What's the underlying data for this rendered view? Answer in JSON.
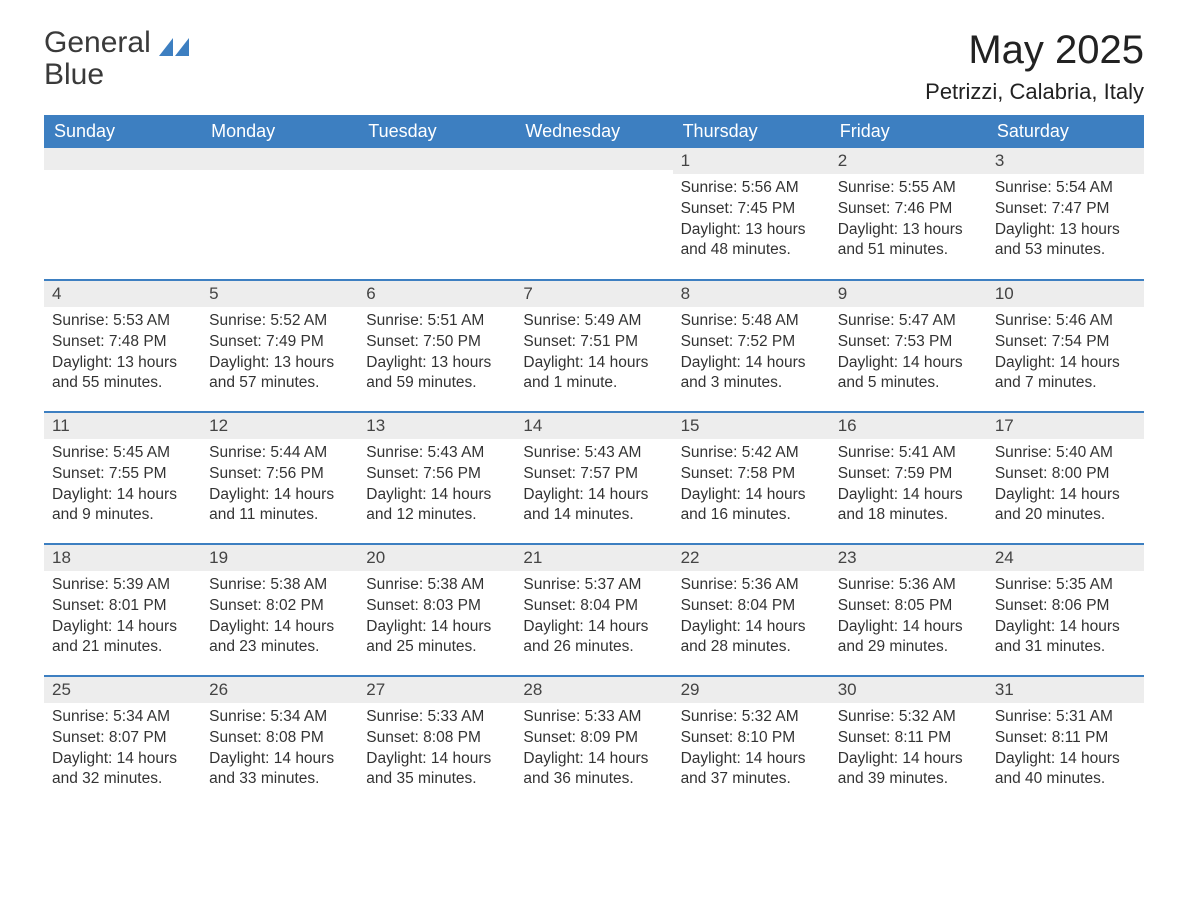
{
  "logo": {
    "text1": "General",
    "text2": "Blue",
    "shape_color": "#3d7fc1"
  },
  "title": "May 2025",
  "subtitle": "Petrizzi, Calabria, Italy",
  "colors": {
    "header_bg": "#3d7fc1",
    "header_fg": "#ffffff",
    "daynum_bg": "#ededed",
    "row_border": "#3d7fc1",
    "text": "#333333",
    "background": "#ffffff"
  },
  "weekdays": [
    "Sunday",
    "Monday",
    "Tuesday",
    "Wednesday",
    "Thursday",
    "Friday",
    "Saturday"
  ],
  "weeks": [
    [
      null,
      null,
      null,
      null,
      {
        "n": "1",
        "sunrise": "5:56 AM",
        "sunset": "7:45 PM",
        "daylight": "13 hours and 48 minutes."
      },
      {
        "n": "2",
        "sunrise": "5:55 AM",
        "sunset": "7:46 PM",
        "daylight": "13 hours and 51 minutes."
      },
      {
        "n": "3",
        "sunrise": "5:54 AM",
        "sunset": "7:47 PM",
        "daylight": "13 hours and 53 minutes."
      }
    ],
    [
      {
        "n": "4",
        "sunrise": "5:53 AM",
        "sunset": "7:48 PM",
        "daylight": "13 hours and 55 minutes."
      },
      {
        "n": "5",
        "sunrise": "5:52 AM",
        "sunset": "7:49 PM",
        "daylight": "13 hours and 57 minutes."
      },
      {
        "n": "6",
        "sunrise": "5:51 AM",
        "sunset": "7:50 PM",
        "daylight": "13 hours and 59 minutes."
      },
      {
        "n": "7",
        "sunrise": "5:49 AM",
        "sunset": "7:51 PM",
        "daylight": "14 hours and 1 minute."
      },
      {
        "n": "8",
        "sunrise": "5:48 AM",
        "sunset": "7:52 PM",
        "daylight": "14 hours and 3 minutes."
      },
      {
        "n": "9",
        "sunrise": "5:47 AM",
        "sunset": "7:53 PM",
        "daylight": "14 hours and 5 minutes."
      },
      {
        "n": "10",
        "sunrise": "5:46 AM",
        "sunset": "7:54 PM",
        "daylight": "14 hours and 7 minutes."
      }
    ],
    [
      {
        "n": "11",
        "sunrise": "5:45 AM",
        "sunset": "7:55 PM",
        "daylight": "14 hours and 9 minutes."
      },
      {
        "n": "12",
        "sunrise": "5:44 AM",
        "sunset": "7:56 PM",
        "daylight": "14 hours and 11 minutes."
      },
      {
        "n": "13",
        "sunrise": "5:43 AM",
        "sunset": "7:56 PM",
        "daylight": "14 hours and 12 minutes."
      },
      {
        "n": "14",
        "sunrise": "5:43 AM",
        "sunset": "7:57 PM",
        "daylight": "14 hours and 14 minutes."
      },
      {
        "n": "15",
        "sunrise": "5:42 AM",
        "sunset": "7:58 PM",
        "daylight": "14 hours and 16 minutes."
      },
      {
        "n": "16",
        "sunrise": "5:41 AM",
        "sunset": "7:59 PM",
        "daylight": "14 hours and 18 minutes."
      },
      {
        "n": "17",
        "sunrise": "5:40 AM",
        "sunset": "8:00 PM",
        "daylight": "14 hours and 20 minutes."
      }
    ],
    [
      {
        "n": "18",
        "sunrise": "5:39 AM",
        "sunset": "8:01 PM",
        "daylight": "14 hours and 21 minutes."
      },
      {
        "n": "19",
        "sunrise": "5:38 AM",
        "sunset": "8:02 PM",
        "daylight": "14 hours and 23 minutes."
      },
      {
        "n": "20",
        "sunrise": "5:38 AM",
        "sunset": "8:03 PM",
        "daylight": "14 hours and 25 minutes."
      },
      {
        "n": "21",
        "sunrise": "5:37 AM",
        "sunset": "8:04 PM",
        "daylight": "14 hours and 26 minutes."
      },
      {
        "n": "22",
        "sunrise": "5:36 AM",
        "sunset": "8:04 PM",
        "daylight": "14 hours and 28 minutes."
      },
      {
        "n": "23",
        "sunrise": "5:36 AM",
        "sunset": "8:05 PM",
        "daylight": "14 hours and 29 minutes."
      },
      {
        "n": "24",
        "sunrise": "5:35 AM",
        "sunset": "8:06 PM",
        "daylight": "14 hours and 31 minutes."
      }
    ],
    [
      {
        "n": "25",
        "sunrise": "5:34 AM",
        "sunset": "8:07 PM",
        "daylight": "14 hours and 32 minutes."
      },
      {
        "n": "26",
        "sunrise": "5:34 AM",
        "sunset": "8:08 PM",
        "daylight": "14 hours and 33 minutes."
      },
      {
        "n": "27",
        "sunrise": "5:33 AM",
        "sunset": "8:08 PM",
        "daylight": "14 hours and 35 minutes."
      },
      {
        "n": "28",
        "sunrise": "5:33 AM",
        "sunset": "8:09 PM",
        "daylight": "14 hours and 36 minutes."
      },
      {
        "n": "29",
        "sunrise": "5:32 AM",
        "sunset": "8:10 PM",
        "daylight": "14 hours and 37 minutes."
      },
      {
        "n": "30",
        "sunrise": "5:32 AM",
        "sunset": "8:11 PM",
        "daylight": "14 hours and 39 minutes."
      },
      {
        "n": "31",
        "sunrise": "5:31 AM",
        "sunset": "8:11 PM",
        "daylight": "14 hours and 40 minutes."
      }
    ]
  ],
  "labels": {
    "sunrise": "Sunrise: ",
    "sunset": "Sunset: ",
    "daylight": "Daylight: "
  }
}
